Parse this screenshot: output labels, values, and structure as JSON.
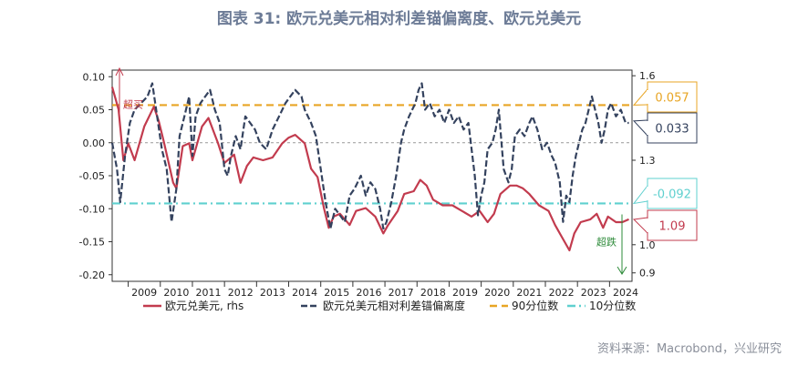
{
  "title": "图表 31: 欧元兑美元相对利差锚偏离度、欧元兑美元",
  "source": "资料来源：Macrobond，兴业研究",
  "chart_data": {
    "type": "line",
    "x_range": [
      2008.5,
      2024.7
    ],
    "x_ticks": [
      "2009",
      "2010",
      "2011",
      "2012",
      "2013",
      "2014",
      "2015",
      "2016",
      "2017",
      "2018",
      "2019",
      "2020",
      "2021",
      "2022",
      "2023",
      "2024"
    ],
    "y_left": {
      "range": [
        -0.21,
        0.11
      ],
      "ticks": [
        "0.10",
        "0.05",
        "0.00",
        "-0.05",
        "-0.10",
        "-0.15",
        "-0.20"
      ]
    },
    "y_right": {
      "range": [
        0.87,
        1.62
      ],
      "ticks": [
        "1.6",
        "1.3",
        "1.0",
        "0.9"
      ]
    },
    "series": [
      {
        "name": "欧元兑美元, rhs",
        "axis": "right",
        "color": "#c23b4e",
        "points": [
          [
            2008.5,
            1.56
          ],
          [
            2008.7,
            1.48
          ],
          [
            2008.85,
            1.3
          ],
          [
            2009.0,
            1.36
          ],
          [
            2009.2,
            1.3
          ],
          [
            2009.5,
            1.42
          ],
          [
            2009.8,
            1.49
          ],
          [
            2009.95,
            1.44
          ],
          [
            2010.1,
            1.37
          ],
          [
            2010.4,
            1.22
          ],
          [
            2010.5,
            1.2
          ],
          [
            2010.7,
            1.35
          ],
          [
            2010.9,
            1.36
          ],
          [
            2011.0,
            1.3
          ],
          [
            2011.3,
            1.42
          ],
          [
            2011.5,
            1.45
          ],
          [
            2011.8,
            1.36
          ],
          [
            2012.0,
            1.29
          ],
          [
            2012.3,
            1.32
          ],
          [
            2012.5,
            1.22
          ],
          [
            2012.7,
            1.28
          ],
          [
            2012.9,
            1.31
          ],
          [
            2013.2,
            1.3
          ],
          [
            2013.5,
            1.31
          ],
          [
            2013.8,
            1.36
          ],
          [
            2014.0,
            1.38
          ],
          [
            2014.2,
            1.39
          ],
          [
            2014.5,
            1.36
          ],
          [
            2014.7,
            1.27
          ],
          [
            2014.9,
            1.24
          ],
          [
            2015.1,
            1.13
          ],
          [
            2015.25,
            1.06
          ],
          [
            2015.4,
            1.1
          ],
          [
            2015.6,
            1.11
          ],
          [
            2015.9,
            1.07
          ],
          [
            2016.1,
            1.12
          ],
          [
            2016.4,
            1.13
          ],
          [
            2016.7,
            1.1
          ],
          [
            2016.95,
            1.04
          ],
          [
            2017.1,
            1.07
          ],
          [
            2017.4,
            1.12
          ],
          [
            2017.6,
            1.18
          ],
          [
            2017.9,
            1.19
          ],
          [
            2018.1,
            1.23
          ],
          [
            2018.3,
            1.21
          ],
          [
            2018.5,
            1.16
          ],
          [
            2018.8,
            1.14
          ],
          [
            2019.1,
            1.14
          ],
          [
            2019.4,
            1.12
          ],
          [
            2019.7,
            1.1
          ],
          [
            2019.95,
            1.12
          ],
          [
            2020.2,
            1.08
          ],
          [
            2020.4,
            1.11
          ],
          [
            2020.6,
            1.18
          ],
          [
            2020.9,
            1.21
          ],
          [
            2021.1,
            1.21
          ],
          [
            2021.3,
            1.2
          ],
          [
            2021.5,
            1.18
          ],
          [
            2021.8,
            1.14
          ],
          [
            2022.1,
            1.12
          ],
          [
            2022.3,
            1.07
          ],
          [
            2022.5,
            1.03
          ],
          [
            2022.75,
            0.98
          ],
          [
            2022.9,
            1.04
          ],
          [
            2023.1,
            1.08
          ],
          [
            2023.4,
            1.09
          ],
          [
            2023.6,
            1.11
          ],
          [
            2023.8,
            1.06
          ],
          [
            2023.95,
            1.1
          ],
          [
            2024.2,
            1.08
          ],
          [
            2024.4,
            1.08
          ],
          [
            2024.6,
            1.09
          ]
        ]
      },
      {
        "name": "欧元兑美元相对利差锚偏离度",
        "axis": "left",
        "color": "#34425e",
        "points": [
          [
            2008.5,
            0.0
          ],
          [
            2008.65,
            -0.04
          ],
          [
            2008.75,
            -0.09
          ],
          [
            2008.9,
            -0.02
          ],
          [
            2009.05,
            0.03
          ],
          [
            2009.2,
            0.05
          ],
          [
            2009.4,
            0.06
          ],
          [
            2009.6,
            0.07
          ],
          [
            2009.75,
            0.09
          ],
          [
            2009.9,
            0.04
          ],
          [
            2010.05,
            -0.01
          ],
          [
            2010.2,
            -0.04
          ],
          [
            2010.35,
            -0.12
          ],
          [
            2010.5,
            -0.07
          ],
          [
            2010.6,
            0.01
          ],
          [
            2010.75,
            0.04
          ],
          [
            2010.9,
            0.07
          ],
          [
            2011.0,
            -0.02
          ],
          [
            2011.1,
            0.04
          ],
          [
            2011.25,
            0.06
          ],
          [
            2011.4,
            0.07
          ],
          [
            2011.55,
            0.08
          ],
          [
            2011.7,
            0.05
          ],
          [
            2011.85,
            0.03
          ],
          [
            2012.0,
            -0.04
          ],
          [
            2012.1,
            -0.05
          ],
          [
            2012.2,
            -0.02
          ],
          [
            2012.35,
            0.01
          ],
          [
            2012.5,
            -0.01
          ],
          [
            2012.65,
            0.04
          ],
          [
            2012.8,
            0.03
          ],
          [
            2012.95,
            0.02
          ],
          [
            2013.1,
            0.0
          ],
          [
            2013.3,
            -0.01
          ],
          [
            2013.5,
            0.02
          ],
          [
            2013.7,
            0.04
          ],
          [
            2013.9,
            0.06
          ],
          [
            2014.05,
            0.07
          ],
          [
            2014.2,
            0.08
          ],
          [
            2014.4,
            0.07
          ],
          [
            2014.5,
            0.05
          ],
          [
            2014.7,
            0.03
          ],
          [
            2014.85,
            0.01
          ],
          [
            2015.0,
            -0.04
          ],
          [
            2015.15,
            -0.09
          ],
          [
            2015.3,
            -0.13
          ],
          [
            2015.45,
            -0.1
          ],
          [
            2015.6,
            -0.11
          ],
          [
            2015.75,
            -0.12
          ],
          [
            2015.9,
            -0.08
          ],
          [
            2016.05,
            -0.07
          ],
          [
            2016.25,
            -0.05
          ],
          [
            2016.4,
            -0.08
          ],
          [
            2016.55,
            -0.06
          ],
          [
            2016.7,
            -0.07
          ],
          [
            2016.85,
            -0.1
          ],
          [
            2016.95,
            -0.13
          ],
          [
            2017.05,
            -0.12
          ],
          [
            2017.2,
            -0.09
          ],
          [
            2017.35,
            -0.05
          ],
          [
            2017.5,
            0.0
          ],
          [
            2017.6,
            0.02
          ],
          [
            2017.75,
            0.04
          ],
          [
            2017.85,
            0.05
          ],
          [
            2017.95,
            0.06
          ],
          [
            2018.05,
            0.08
          ],
          [
            2018.15,
            0.09
          ],
          [
            2018.25,
            0.05
          ],
          [
            2018.4,
            0.06
          ],
          [
            2018.55,
            0.04
          ],
          [
            2018.7,
            0.05
          ],
          [
            2018.85,
            0.03
          ],
          [
            2019.0,
            0.05
          ],
          [
            2019.15,
            0.03
          ],
          [
            2019.3,
            0.04
          ],
          [
            2019.45,
            0.02
          ],
          [
            2019.6,
            0.03
          ],
          [
            2019.7,
            -0.01
          ],
          [
            2019.8,
            -0.05
          ],
          [
            2019.9,
            -0.11
          ],
          [
            2020.0,
            -0.08
          ],
          [
            2020.1,
            -0.06
          ],
          [
            2020.2,
            -0.01
          ],
          [
            2020.35,
            0.0
          ],
          [
            2020.45,
            0.02
          ],
          [
            2020.55,
            0.05
          ],
          [
            2020.6,
            0.02
          ],
          [
            2020.7,
            -0.04
          ],
          [
            2020.85,
            -0.06
          ],
          [
            2020.95,
            -0.04
          ],
          [
            2021.05,
            0.01
          ],
          [
            2021.2,
            0.02
          ],
          [
            2021.35,
            0.01
          ],
          [
            2021.5,
            0.03
          ],
          [
            2021.6,
            0.04
          ],
          [
            2021.75,
            0.02
          ],
          [
            2021.9,
            -0.01
          ],
          [
            2022.05,
            0.0
          ],
          [
            2022.2,
            -0.02
          ],
          [
            2022.3,
            -0.03
          ],
          [
            2022.45,
            -0.06
          ],
          [
            2022.55,
            -0.12
          ],
          [
            2022.65,
            -0.08
          ],
          [
            2022.75,
            -0.09
          ],
          [
            2022.85,
            -0.05
          ],
          [
            2022.95,
            -0.02
          ],
          [
            2023.05,
            0.0
          ],
          [
            2023.15,
            0.02
          ],
          [
            2023.25,
            0.03
          ],
          [
            2023.35,
            0.05
          ],
          [
            2023.45,
            0.07
          ],
          [
            2023.55,
            0.05
          ],
          [
            2023.65,
            0.03
          ],
          [
            2023.75,
            0.0
          ],
          [
            2023.85,
            0.02
          ],
          [
            2023.95,
            0.05
          ],
          [
            2024.05,
            0.06
          ],
          [
            2024.2,
            0.04
          ],
          [
            2024.35,
            0.05
          ],
          [
            2024.5,
            0.03
          ],
          [
            2024.6,
            0.03
          ]
        ]
      },
      {
        "name": "90分位数",
        "axis": "left",
        "color": "#e8a524",
        "value": 0.057
      },
      {
        "name": "10分位数",
        "axis": "left",
        "color": "#5fd0cf",
        "value": -0.092
      }
    ],
    "callouts": [
      {
        "label": "0.057",
        "color": "#e8a524"
      },
      {
        "label": "0.033",
        "color": "#34425e"
      },
      {
        "label": "-0.092",
        "color": "#5fd0cf"
      },
      {
        "label": "1.09",
        "color": "#c23b4e"
      }
    ],
    "annotations": [
      {
        "label": "超买",
        "color": "#c23b4e"
      },
      {
        "label": "超跌",
        "color": "#2e8b3a"
      }
    ]
  }
}
